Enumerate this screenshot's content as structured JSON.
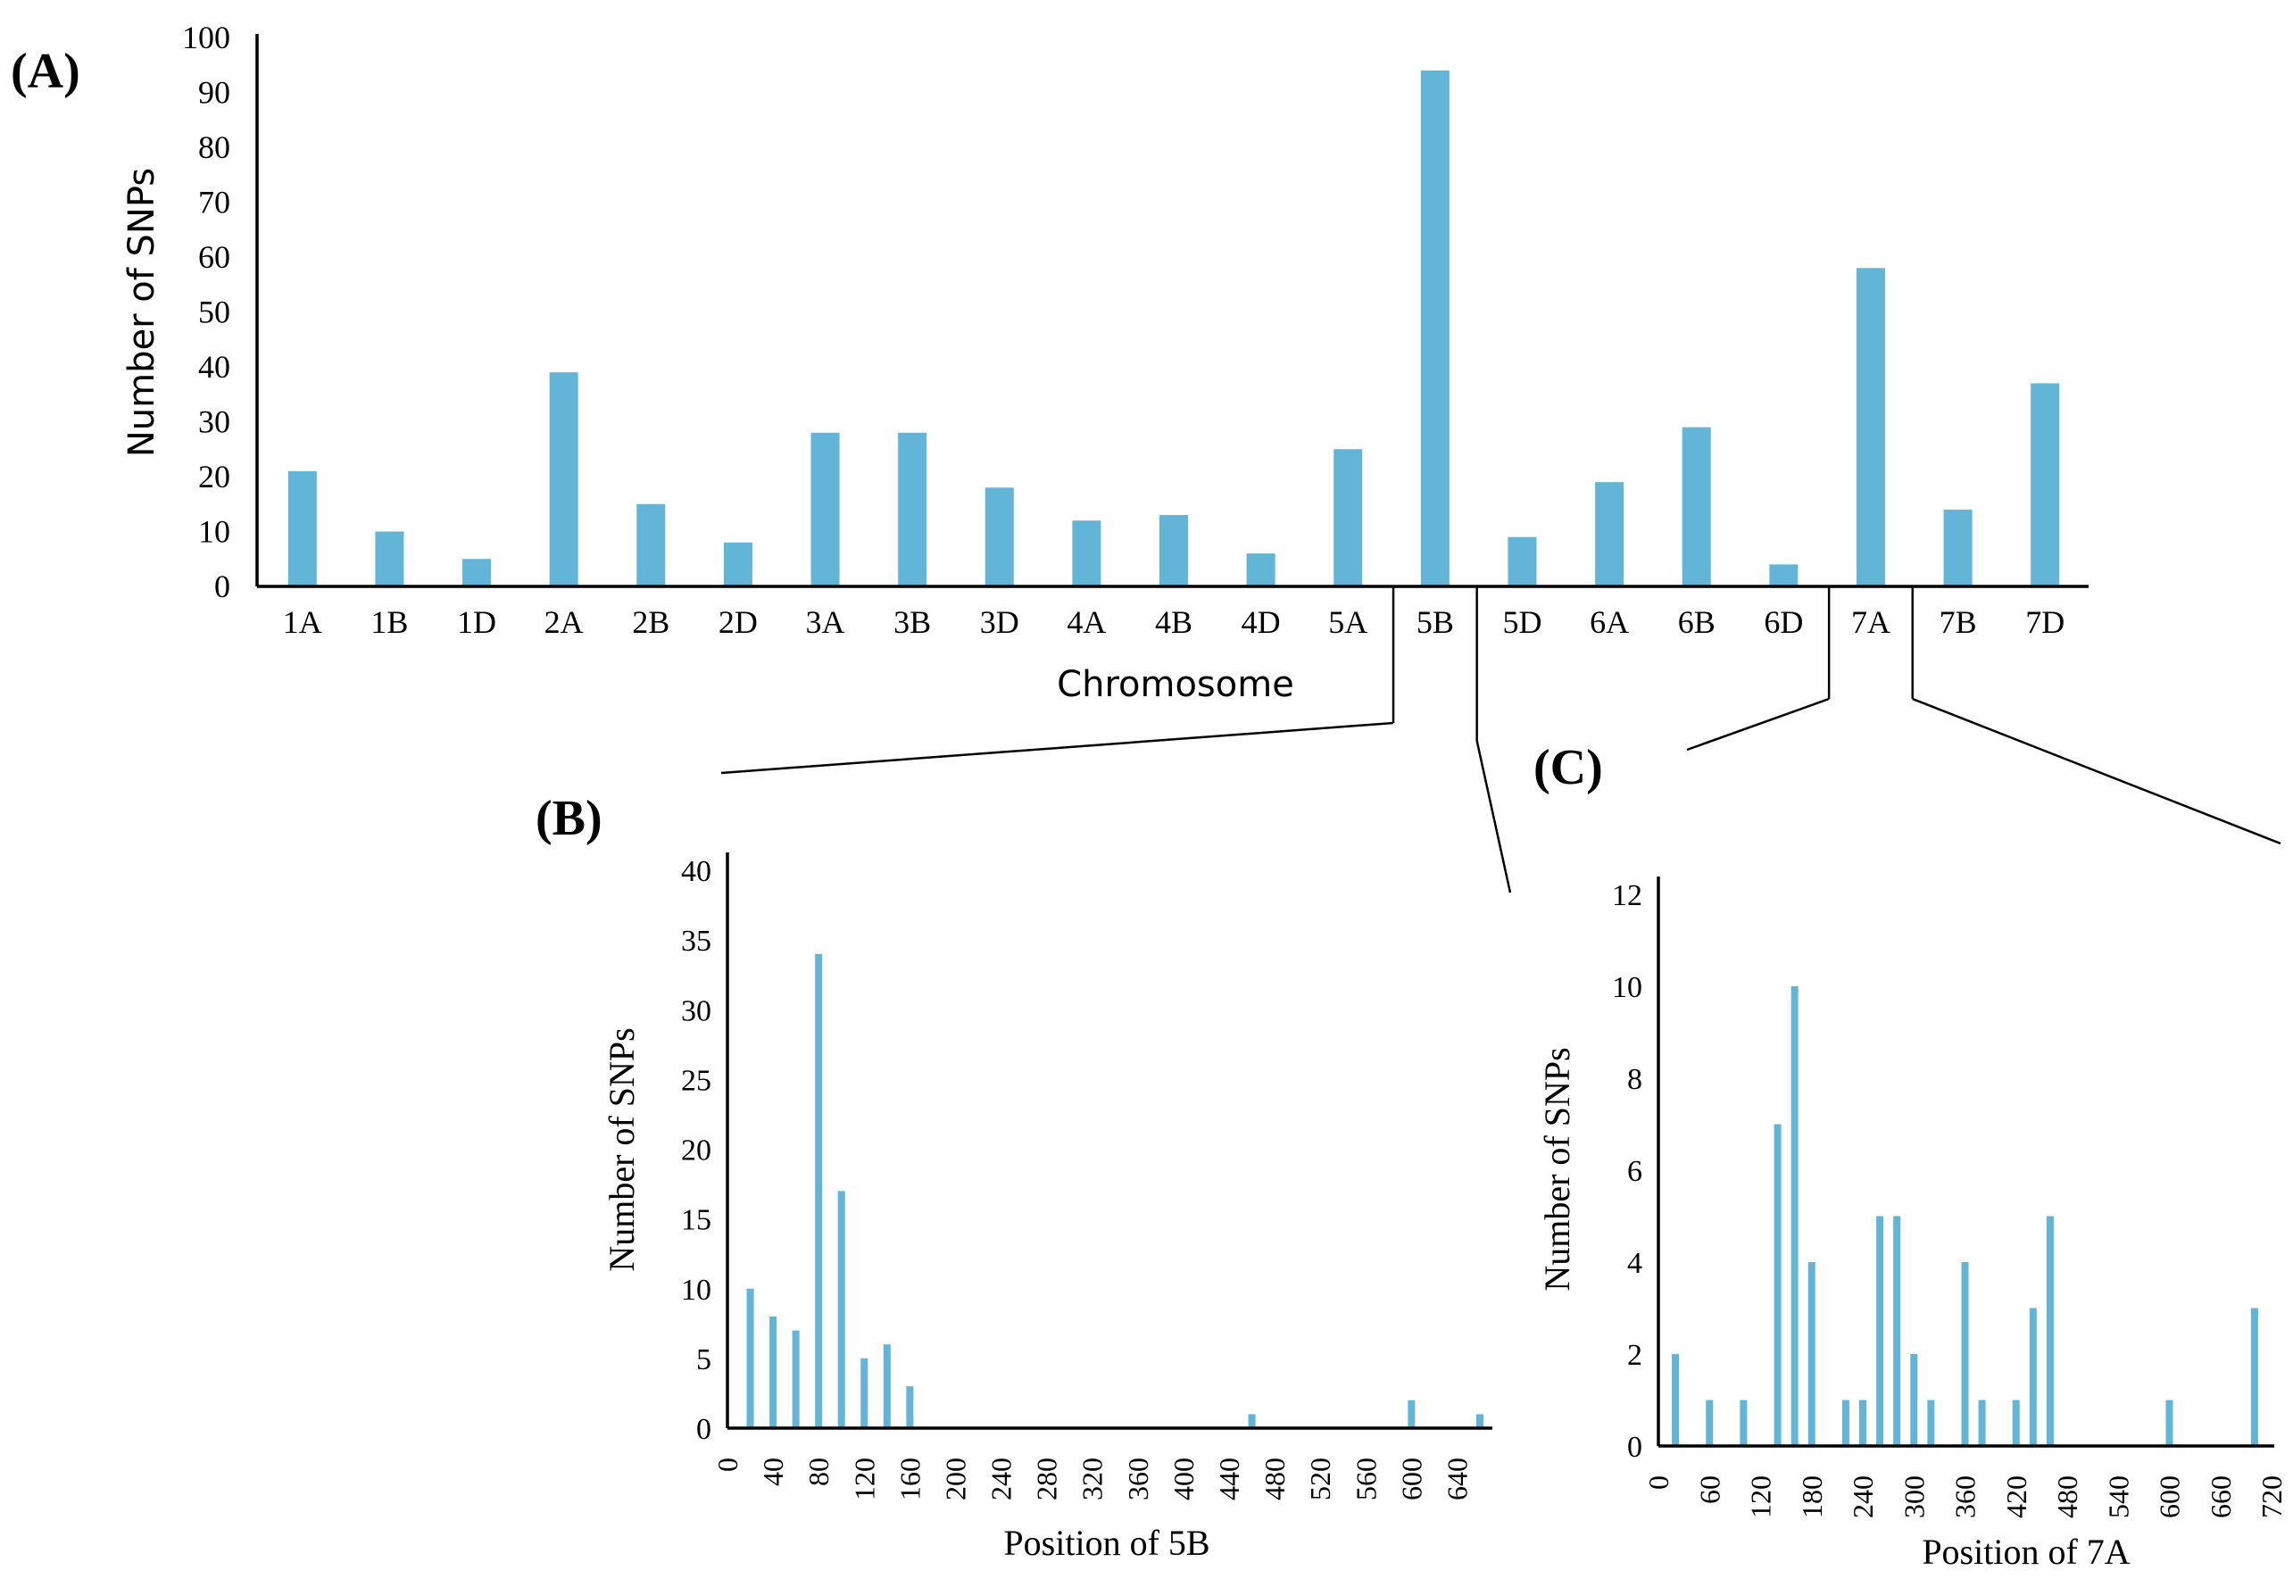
{
  "chart_data": [
    {
      "id": "A",
      "type": "bar",
      "panel_label": "(A)",
      "title": "",
      "xlabel": "Chromosome",
      "ylabel": "Number of SNPs",
      "ylim": [
        0,
        100
      ],
      "yticks": [
        0,
        10,
        20,
        30,
        40,
        50,
        60,
        70,
        80,
        90,
        100
      ],
      "grid": false,
      "color": "#62b5d6",
      "categories": [
        "1A",
        "1B",
        "1D",
        "2A",
        "2B",
        "2D",
        "3A",
        "3B",
        "3D",
        "4A",
        "4B",
        "4D",
        "5A",
        "5B",
        "5D",
        "6A",
        "6B",
        "6D",
        "7A",
        "7B",
        "7D"
      ],
      "values": [
        21,
        10,
        5,
        39,
        15,
        8,
        28,
        28,
        18,
        12,
        13,
        6,
        25,
        94,
        9,
        19,
        29,
        4,
        58,
        14,
        37
      ]
    },
    {
      "id": "B",
      "type": "bar",
      "panel_label": "(B)",
      "title": "",
      "xlabel": "Position of 5B",
      "ylabel": "Number of SNPs",
      "ylim": [
        0,
        40
      ],
      "xlim": [
        0,
        660
      ],
      "yticks": [
        0,
        5,
        10,
        15,
        20,
        25,
        30,
        35,
        40
      ],
      "xticks": [
        0,
        40,
        80,
        120,
        160,
        200,
        240,
        280,
        320,
        360,
        400,
        440,
        480,
        520,
        560,
        600,
        640
      ],
      "grid": false,
      "color": "#62b5d6",
      "x": [
        20,
        40,
        60,
        80,
        100,
        120,
        140,
        160,
        460,
        600,
        660
      ],
      "values": [
        10,
        8,
        7,
        34,
        17,
        5,
        6,
        3,
        1,
        2,
        1
      ]
    },
    {
      "id": "C",
      "type": "bar",
      "panel_label": "(C)",
      "title": "",
      "xlabel": "Position of 7A",
      "ylabel": "Number of SNPs",
      "ylim": [
        0,
        12
      ],
      "xlim": [
        0,
        720
      ],
      "yticks": [
        0,
        2,
        4,
        6,
        8,
        10,
        12
      ],
      "xticks": [
        0,
        60,
        120,
        180,
        240,
        300,
        360,
        420,
        480,
        540,
        600,
        660,
        720
      ],
      "grid": false,
      "color": "#62b5d6",
      "x": [
        20,
        60,
        100,
        140,
        160,
        180,
        220,
        240,
        260,
        280,
        300,
        320,
        360,
        380,
        420,
        440,
        460,
        600,
        700
      ],
      "values": [
        2,
        1,
        1,
        7,
        10,
        4,
        1,
        1,
        5,
        5,
        2,
        1,
        4,
        1,
        1,
        3,
        5,
        1,
        3
      ]
    }
  ]
}
